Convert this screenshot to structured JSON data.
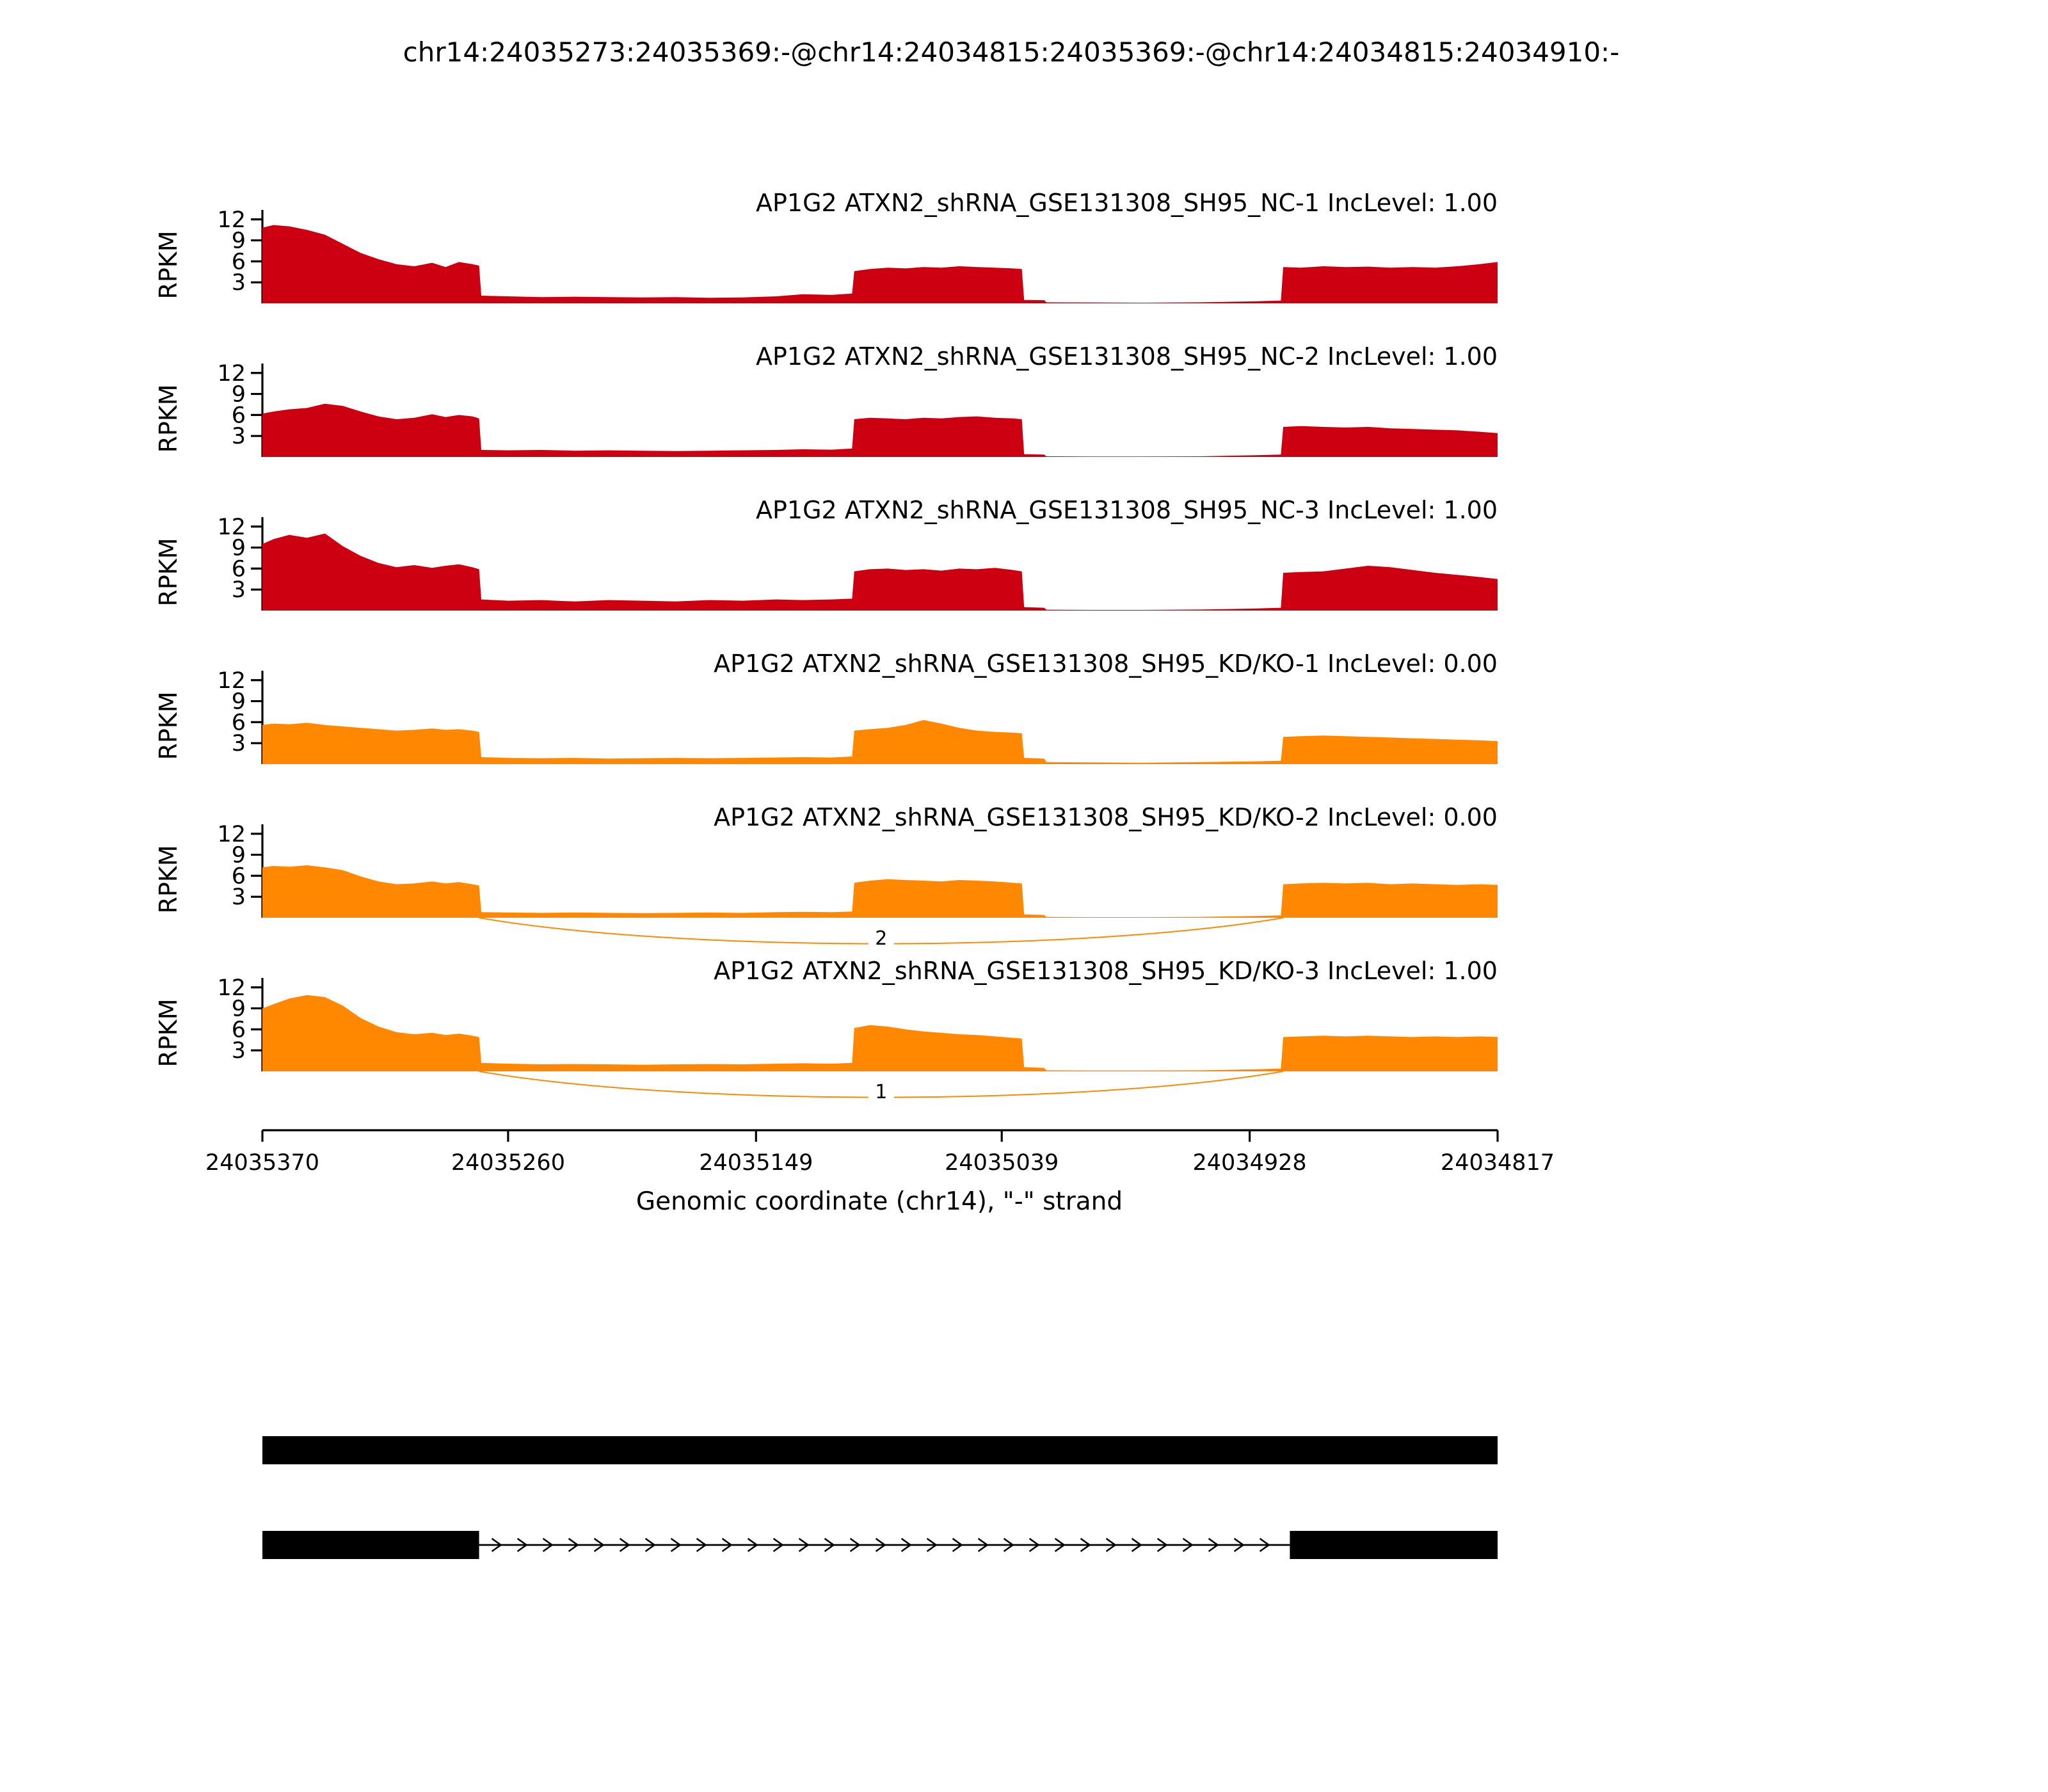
{
  "page": {
    "title": "chr14:24035273:24035369:-@chr14:24034815:24035369:-@chr14:24034815:24034910:-"
  },
  "axis": {
    "ylabel": "RPKM",
    "yticks": [
      3,
      6,
      9,
      12
    ],
    "ymax": 12.8,
    "xlabel": "Genomic coordinate (chr14), \"-\" strand",
    "x_start": 24035370,
    "x_end": 24034817,
    "xticks": [
      24035370,
      24035260,
      24035149,
      24035039,
      24034928,
      24034817
    ]
  },
  "colors": {
    "nc": "#CC0011",
    "kd": "#FF8800",
    "annotation": "#000000"
  },
  "chart_data": {
    "type": "area",
    "title": "chr14:24035273:24035369:-@chr14:24034815:24035369:-@chr14:24034815:24034910:-",
    "xlabel": "Genomic coordinate (chr14), \"-\" strand",
    "ylabel": "RPKM",
    "ylim": [
      0,
      12.8
    ],
    "x": [
      24035370,
      24035365,
      24035358,
      24035350,
      24035342,
      24035334,
      24035326,
      24035318,
      24035310,
      24035302,
      24035294,
      24035288,
      24035282,
      24035276,
      24035273,
      24035272,
      24035260,
      24035245,
      24035230,
      24035215,
      24035200,
      24035185,
      24035170,
      24035155,
      24035140,
      24035128,
      24035115,
      24035106,
      24035105,
      24035098,
      24035090,
      24035082,
      24035074,
      24035066,
      24035058,
      24035050,
      24035042,
      24035034,
      24035030,
      24035029,
      24035020,
      24035019,
      24035000,
      24034975,
      24034950,
      24034925,
      24034914,
      24034913,
      24034905,
      24034895,
      24034885,
      24034875,
      24034865,
      24034855,
      24034845,
      24034835,
      24034825,
      24034817
    ],
    "series": [
      {
        "label": "AP1G2 ATXN2_shRNA_GSE131308_SH95_NC-1 IncLevel: 1.00",
        "color": "#CC0011",
        "inc_level": "1.00",
        "values": [
          10.8,
          11.2,
          11.0,
          10.5,
          9.8,
          8.5,
          7.2,
          6.3,
          5.6,
          5.3,
          5.8,
          5.2,
          5.9,
          5.6,
          5.4,
          1.1,
          1.0,
          0.9,
          0.95,
          0.9,
          0.85,
          0.9,
          0.8,
          0.85,
          1.0,
          1.3,
          1.2,
          1.4,
          4.6,
          4.9,
          5.1,
          5.0,
          5.2,
          5.1,
          5.3,
          5.2,
          5.1,
          5.0,
          4.9,
          0.5,
          0.45,
          0.15,
          0.12,
          0.1,
          0.15,
          0.3,
          0.4,
          5.2,
          5.1,
          5.3,
          5.2,
          5.25,
          5.1,
          5.2,
          5.1,
          5.3,
          5.6,
          5.9
        ],
        "junctions": []
      },
      {
        "label": "AP1G2 ATXN2_shRNA_GSE131308_SH95_NC-2 IncLevel: 1.00",
        "color": "#CC0011",
        "inc_level": "1.00",
        "values": [
          6.2,
          6.5,
          6.8,
          7.0,
          7.6,
          7.3,
          6.5,
          5.8,
          5.4,
          5.6,
          6.1,
          5.7,
          6.0,
          5.8,
          5.5,
          1.0,
          0.95,
          1.0,
          0.9,
          0.95,
          0.9,
          0.85,
          0.9,
          0.95,
          1.0,
          1.1,
          1.05,
          1.2,
          5.4,
          5.6,
          5.5,
          5.4,
          5.6,
          5.5,
          5.7,
          5.8,
          5.6,
          5.5,
          5.4,
          0.4,
          0.35,
          0.1,
          0.08,
          0.08,
          0.1,
          0.25,
          0.35,
          4.3,
          4.4,
          4.3,
          4.2,
          4.3,
          4.1,
          4.0,
          3.9,
          3.8,
          3.6,
          3.4
        ],
        "junctions": []
      },
      {
        "label": "AP1G2 ATXN2_shRNA_GSE131308_SH95_NC-3 IncLevel: 1.00",
        "color": "#CC0011",
        "inc_level": "1.00",
        "values": [
          9.5,
          10.2,
          10.8,
          10.4,
          11.0,
          9.2,
          7.8,
          6.8,
          6.2,
          6.5,
          6.1,
          6.4,
          6.6,
          6.2,
          5.9,
          1.6,
          1.4,
          1.5,
          1.3,
          1.5,
          1.4,
          1.3,
          1.5,
          1.4,
          1.6,
          1.5,
          1.6,
          1.7,
          5.6,
          5.9,
          6.0,
          5.8,
          5.9,
          5.7,
          6.0,
          5.9,
          6.1,
          5.8,
          5.6,
          0.5,
          0.4,
          0.12,
          0.1,
          0.1,
          0.15,
          0.3,
          0.4,
          5.4,
          5.5,
          5.6,
          6.0,
          6.4,
          6.2,
          5.8,
          5.4,
          5.1,
          4.8,
          4.5
        ],
        "junctions": []
      },
      {
        "label": "AP1G2 ATXN2_shRNA_GSE131308_SH95_KD/KO-1 IncLevel: 0.00",
        "color": "#FF8800",
        "inc_level": "0.00",
        "values": [
          5.6,
          5.8,
          5.7,
          5.9,
          5.6,
          5.4,
          5.2,
          5.0,
          4.8,
          4.9,
          5.1,
          4.9,
          5.0,
          4.8,
          4.6,
          1.0,
          0.9,
          0.85,
          0.9,
          0.8,
          0.85,
          0.9,
          0.85,
          0.9,
          0.95,
          1.0,
          0.95,
          1.1,
          4.8,
          5.0,
          5.2,
          5.6,
          6.3,
          5.8,
          5.2,
          4.8,
          4.6,
          4.5,
          4.4,
          0.9,
          0.8,
          0.3,
          0.25,
          0.2,
          0.3,
          0.4,
          0.5,
          3.9,
          4.0,
          4.1,
          4.0,
          3.9,
          3.8,
          3.7,
          3.6,
          3.5,
          3.4,
          3.3
        ],
        "junctions": []
      },
      {
        "label": "AP1G2 ATXN2_shRNA_GSE131308_SH95_KD/KO-2 IncLevel: 0.00",
        "color": "#FF8800",
        "inc_level": "0.00",
        "values": [
          7.2,
          7.4,
          7.3,
          7.5,
          7.2,
          6.8,
          5.9,
          5.2,
          4.8,
          4.9,
          5.2,
          4.9,
          5.1,
          4.8,
          4.6,
          0.8,
          0.75,
          0.7,
          0.75,
          0.7,
          0.65,
          0.7,
          0.75,
          0.7,
          0.8,
          0.85,
          0.8,
          0.9,
          5.0,
          5.3,
          5.5,
          5.4,
          5.3,
          5.2,
          5.4,
          5.3,
          5.2,
          5.0,
          4.9,
          0.5,
          0.4,
          0.12,
          0.1,
          0.1,
          0.12,
          0.25,
          0.35,
          4.8,
          4.9,
          5.0,
          4.9,
          5.0,
          4.8,
          4.9,
          4.8,
          4.7,
          4.8,
          4.7
        ],
        "junctions": [
          {
            "from": 24035273,
            "to": 24034913,
            "count": 2
          }
        ]
      },
      {
        "label": "AP1G2 ATXN2_shRNA_GSE131308_SH95_KD/KO-3 IncLevel: 1.00",
        "color": "#FF8800",
        "inc_level": "1.00",
        "values": [
          9.0,
          9.6,
          10.4,
          10.9,
          10.6,
          9.4,
          7.6,
          6.4,
          5.6,
          5.3,
          5.5,
          5.2,
          5.4,
          5.1,
          4.9,
          1.2,
          1.1,
          1.0,
          1.05,
          1.0,
          0.95,
          1.0,
          1.05,
          1.0,
          1.1,
          1.15,
          1.1,
          1.2,
          6.2,
          6.6,
          6.4,
          6.0,
          5.7,
          5.5,
          5.3,
          5.2,
          5.0,
          4.8,
          4.7,
          0.6,
          0.5,
          0.15,
          0.12,
          0.12,
          0.15,
          0.3,
          0.4,
          4.9,
          5.0,
          5.1,
          5.0,
          5.1,
          5.0,
          4.9,
          5.0,
          4.9,
          5.0,
          4.9
        ],
        "junctions": [
          {
            "from": 24035273,
            "to": 24034913,
            "count": 1
          }
        ]
      }
    ]
  },
  "annotation": {
    "isoforms": [
      {
        "exons": [
          [
            24035370,
            24034817
          ]
        ]
      },
      {
        "exons": [
          [
            24035370,
            24035273
          ],
          [
            24034910,
            24034817
          ]
        ],
        "intron": [
          24035273,
          24034910
        ]
      }
    ]
  }
}
